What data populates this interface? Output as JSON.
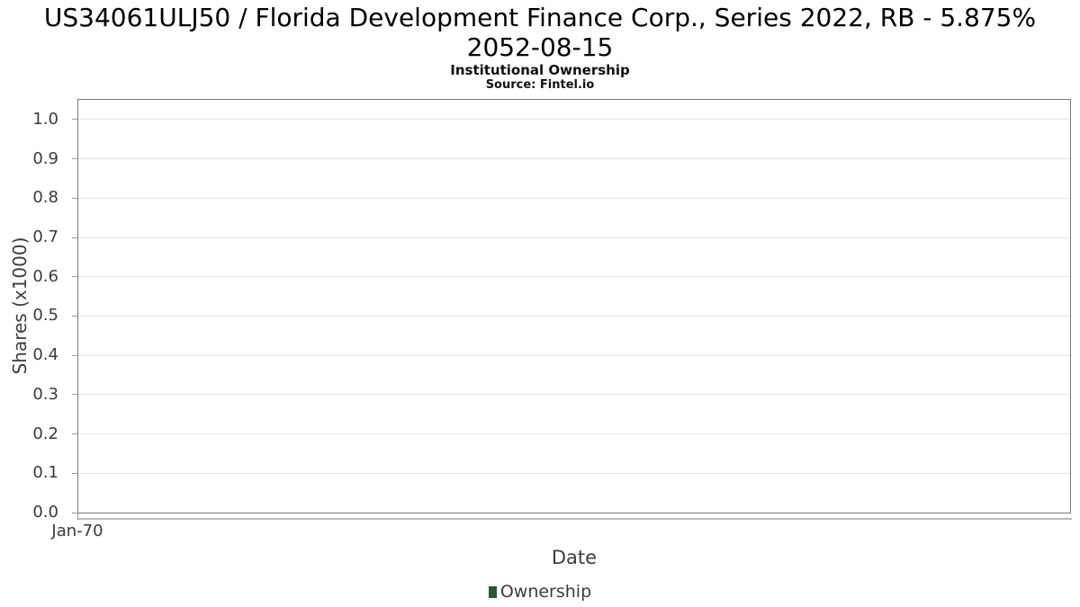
{
  "figure": {
    "title_line1": "US34061ULJ50 / Florida Development Finance Corp., Series 2022, RB - 5.875%",
    "title_line2": "2052-08-15",
    "subtitle": "Institutional Ownership",
    "source": "Source: Fintel.io"
  },
  "legend": {
    "label": "Ownership",
    "marker_color": "#2a5630"
  },
  "colors": {
    "plot_border": "#7a7a7a",
    "gridline": "#e4e4e4",
    "tick_text": "#3a3a3a",
    "title_text": "#000000"
  },
  "chart_data": {
    "type": "line",
    "title": "US34061ULJ50 / Florida Development Finance Corp., Series 2022, RB - 5.875% 2052-08-15",
    "subtitle": "Institutional Ownership",
    "source": "Source: Fintel.io",
    "xlabel": "Date",
    "ylabel": "Shares (x1000)",
    "x_ticks": [
      "Jan-70"
    ],
    "y_ticks": [
      0.0,
      0.1,
      0.2,
      0.3,
      0.4,
      0.5,
      0.6,
      0.7,
      0.8,
      0.9,
      1.0
    ],
    "y_tick_format": "0.0",
    "ylim": [
      0.0,
      1.05
    ],
    "grid": "horizontal",
    "legend_position": "bottom-center",
    "series": [
      {
        "name": "Ownership",
        "color": "#2a5630",
        "x": [],
        "values": []
      }
    ]
  }
}
